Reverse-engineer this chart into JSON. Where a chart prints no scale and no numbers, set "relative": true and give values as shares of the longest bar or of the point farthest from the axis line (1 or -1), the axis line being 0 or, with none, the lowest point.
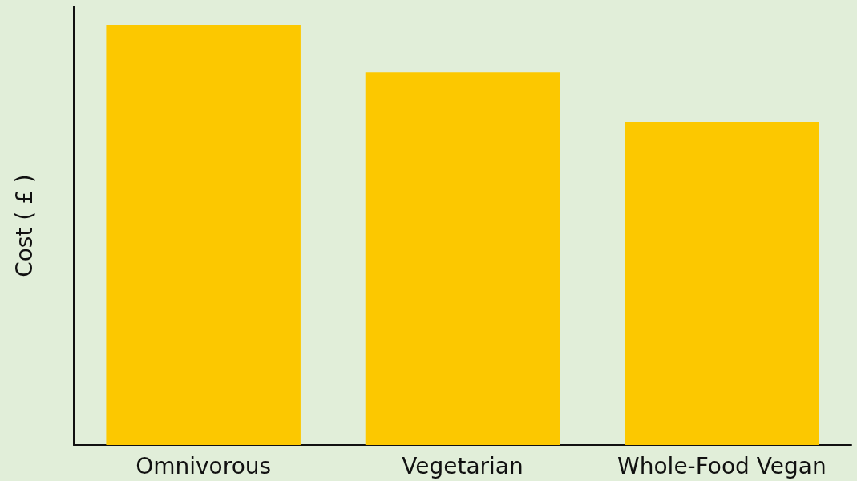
{
  "chart_data": {
    "type": "bar",
    "ylabel": "Cost ( £ )",
    "relative": true,
    "categories": [
      "Omnivorous",
      "Vegetarian",
      "Whole-Food Vegan"
    ],
    "values": [
      1,
      0.887,
      0.769
    ],
    "color": "#fcc800",
    "grid": false
  }
}
